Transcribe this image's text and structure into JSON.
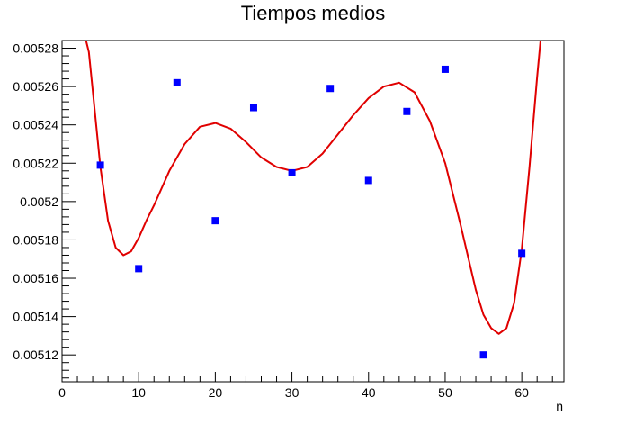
{
  "chart_data": {
    "type": "scatter",
    "title": "Tiempos medios",
    "xlabel": "n",
    "ylabel": "",
    "xlim": [
      0,
      65.5
    ],
    "ylim": [
      0.005106,
      0.005284
    ],
    "grid": false,
    "x_ticks": [
      0,
      10,
      20,
      30,
      40,
      50,
      60
    ],
    "x_tick_labels": [
      "0",
      "10",
      "20",
      "30",
      "40",
      "50",
      "60"
    ],
    "y_ticks": [
      0.00512,
      0.00514,
      0.00516,
      0.00518,
      0.0052,
      0.00522,
      0.00524,
      0.00526,
      0.00528
    ],
    "y_tick_labels": [
      "0.00512",
      "0.00514",
      "0.00516",
      "0.00518",
      "0.0052",
      "0.00522",
      "0.00524",
      "0.00526",
      "0.00528"
    ],
    "series": [
      {
        "kind": "points",
        "color": "#0000ff",
        "marker": "square",
        "x": [
          5,
          10,
          15,
          20,
          25,
          30,
          35,
          40,
          45,
          50,
          55,
          60
        ],
        "y": [
          0.005219,
          0.005165,
          0.005262,
          0.00519,
          0.005249,
          0.005215,
          0.005259,
          0.005211,
          0.005247,
          0.005269,
          0.00512,
          0.005173
        ]
      },
      {
        "kind": "fit-curve",
        "color": "#e00000",
        "x": [
          3,
          3.5,
          4,
          5,
          6,
          7,
          8,
          9,
          10,
          11,
          12,
          14,
          16,
          18,
          20,
          22,
          24,
          26,
          28,
          30,
          32,
          34,
          36,
          38,
          40,
          42,
          44,
          46,
          48,
          50,
          52,
          54,
          55,
          56,
          57,
          58,
          59,
          60,
          61,
          62,
          62.5
        ],
        "y": [
          0.005286,
          0.005278,
          0.005258,
          0.005218,
          0.00519,
          0.005176,
          0.005172,
          0.005174,
          0.005181,
          0.00519,
          0.005198,
          0.005216,
          0.00523,
          0.005239,
          0.005241,
          0.005238,
          0.005231,
          0.005223,
          0.005218,
          0.005216,
          0.005218,
          0.005225,
          0.005235,
          0.005245,
          0.005254,
          0.00526,
          0.005262,
          0.005257,
          0.005242,
          0.00522,
          0.005188,
          0.005154,
          0.005141,
          0.005134,
          0.005131,
          0.005134,
          0.005147,
          0.005175,
          0.005218,
          0.005265,
          0.005286
        ]
      }
    ]
  }
}
